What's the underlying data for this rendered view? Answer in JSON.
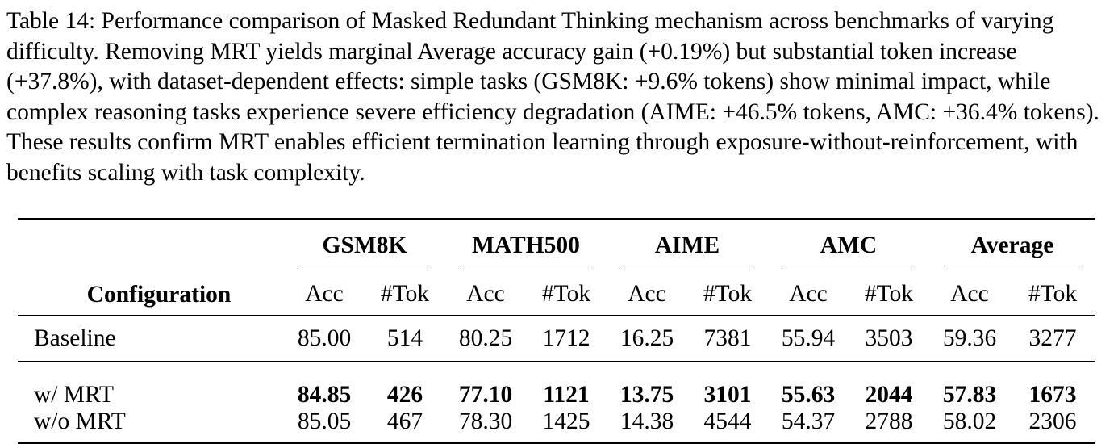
{
  "caption": {
    "text": "Table 14: Performance comparison of Masked Redundant Thinking mechanism across benchmarks of varying difficulty. Removing MRT yields marginal Average accuracy gain (+0.19%) but substantial token increase (+37.8%), with dataset-dependent effects: simple tasks (GSM8K: +9.6% tokens) show minimal impact, while complex reasoning tasks experience severe efficiency degradation (AIME: +46.5% tokens, AMC: +36.4% tokens). These results confirm MRT enables efficient termination learning through exposure-without-reinforcement, with benefits scaling with task complexity."
  },
  "table": {
    "config_header": "Configuration",
    "groups": [
      "GSM8K",
      "MATH500",
      "AIME",
      "AMC",
      "Average"
    ],
    "sub_headers": [
      "Acc",
      "#Tok"
    ],
    "rows": [
      {
        "label": "Baseline",
        "cells": [
          "85.00",
          "514",
          "80.25",
          "1712",
          "16.25",
          "7381",
          "55.94",
          "3503",
          "59.36",
          "3277"
        ],
        "bold": false
      },
      {
        "label": "w/ MRT",
        "cells": [
          "84.85",
          "426",
          "77.10",
          "1121",
          "13.75",
          "3101",
          "55.63",
          "2044",
          "57.83",
          "1673"
        ],
        "bold": true
      },
      {
        "label": "w/o MRT",
        "cells": [
          "85.05",
          "467",
          "78.30",
          "1425",
          "14.38",
          "4544",
          "54.37",
          "2788",
          "58.02",
          "2306"
        ],
        "bold": false
      }
    ]
  }
}
